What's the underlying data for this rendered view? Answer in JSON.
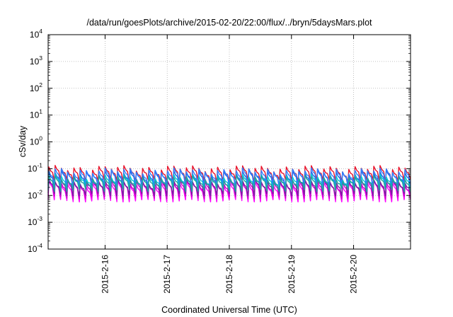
{
  "chart_data": {
    "type": "line",
    "title": "/data/run/goesPlots/archive/2015-02-20/22:00/flux/../bryn/5daysMars.plot",
    "xlabel": "Coordinated Universal Time (UTC)",
    "ylabel": "cSv/day",
    "x_start": "2015-02-15 02:00",
    "x_end": "2015-02-20 22:00",
    "xlim": [
      0,
      5.8333
    ],
    "x_ticks": [
      {
        "value": 0.9167,
        "label": "2015-2-16"
      },
      {
        "value": 1.9167,
        "label": "2015-2-17"
      },
      {
        "value": 2.9167,
        "label": "2015-2-18"
      },
      {
        "value": 3.9167,
        "label": "2015-2-19"
      },
      {
        "value": 4.9167,
        "label": "2015-2-20"
      }
    ],
    "y_scale": "log",
    "ylim": [
      0.0001,
      10000
    ],
    "y_ticks": [
      {
        "value": 0.0001,
        "base": "10",
        "exp": "-4"
      },
      {
        "value": 0.001,
        "base": "10",
        "exp": "-3"
      },
      {
        "value": 0.01,
        "base": "10",
        "exp": "-2"
      },
      {
        "value": 0.1,
        "base": "10",
        "exp": "-1"
      },
      {
        "value": 1,
        "base": "10",
        "exp": "0"
      },
      {
        "value": 10,
        "base": "10",
        "exp": "1"
      },
      {
        "value": 100,
        "base": "10",
        "exp": "2"
      },
      {
        "value": 1000,
        "base": "10",
        "exp": "3"
      },
      {
        "value": 10000,
        "base": "10",
        "exp": "4"
      }
    ],
    "grid": true,
    "pattern": {
      "cycles": 58,
      "cycle_days": 0.1
    },
    "series": [
      {
        "color": "#e8132b",
        "peak": 0.105,
        "base": 0.036,
        "peak_dip_every": 0
      },
      {
        "color": "#ff00ff",
        "peak": 0.028,
        "base": 0.0065,
        "peak_dip_every": 0
      },
      {
        "color": "#cc00cc",
        "peak": 0.032,
        "base": 0.0085,
        "peak_dip_every": 0
      },
      {
        "color": "#7a1fa2",
        "peak": 0.036,
        "base": 0.011,
        "peak_dip_every": 0
      },
      {
        "color": "#1f5fe0",
        "peak": 0.072,
        "base": 0.021,
        "peak_dip_every": 0
      },
      {
        "color": "#2f7fff",
        "peak": 0.085,
        "base": 0.026,
        "peak_dip_every": 0
      },
      {
        "color": "#00c8d8",
        "peak": 0.05,
        "base": 0.018,
        "peak_dip_every": 0
      },
      {
        "color": "#20a0a0",
        "peak": 0.045,
        "base": 0.016,
        "peak_dip_every": 0
      }
    ]
  }
}
